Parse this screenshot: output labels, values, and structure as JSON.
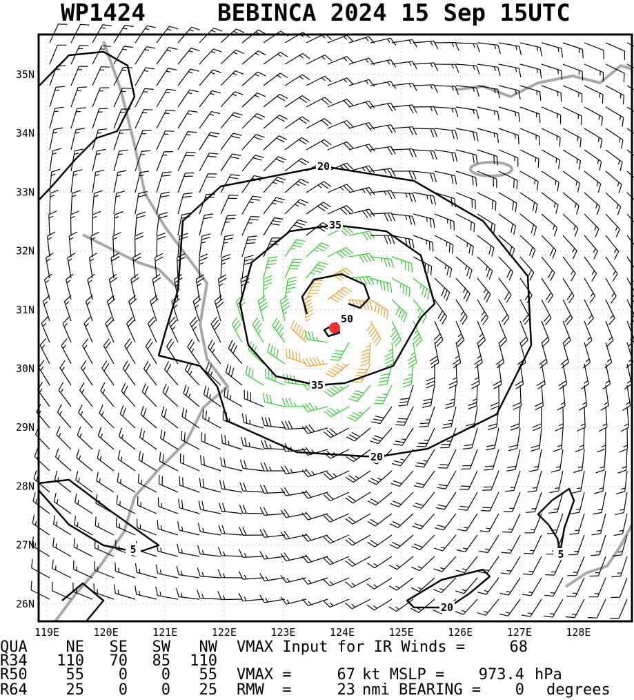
{
  "header": {
    "id": "WP1424",
    "title": "BEBINCA 2024 15 Sep 15UTC"
  },
  "map": {
    "lon_labels": [
      "119E",
      "120E",
      "121E",
      "122E",
      "123E",
      "124E",
      "125E",
      "126E",
      "127E",
      "128E"
    ],
    "lat_labels": [
      "35N",
      "34N",
      "33N",
      "32N",
      "31N",
      "30N",
      "29N",
      "28N",
      "27N",
      "26N"
    ],
    "contour_labels": [
      20,
      35,
      50,
      35,
      20,
      5,
      5,
      20
    ]
  },
  "table": {
    "header": [
      "QUA",
      "NE",
      "SE",
      "SW",
      "NW"
    ],
    "rows": [
      [
        "R34",
        110,
        70,
        85,
        110
      ],
      [
        "R50",
        55,
        0,
        0,
        55
      ],
      [
        "R64",
        25,
        0,
        0,
        25
      ]
    ]
  },
  "summary": {
    "vmax_ir_label": "VMAX Input for IR Winds =",
    "vmax_ir": 68,
    "vmax_label": "VMAX =",
    "vmax": 67,
    "mslp_label": "kt MSLP =",
    "mslp": 973.4,
    "mslp_unit": "hPa",
    "rmw_label": "RMW  =",
    "rmw": 23,
    "bearing_label": "nmi BEARING =",
    "bearing": 0,
    "bearing_unit": "degrees"
  }
}
